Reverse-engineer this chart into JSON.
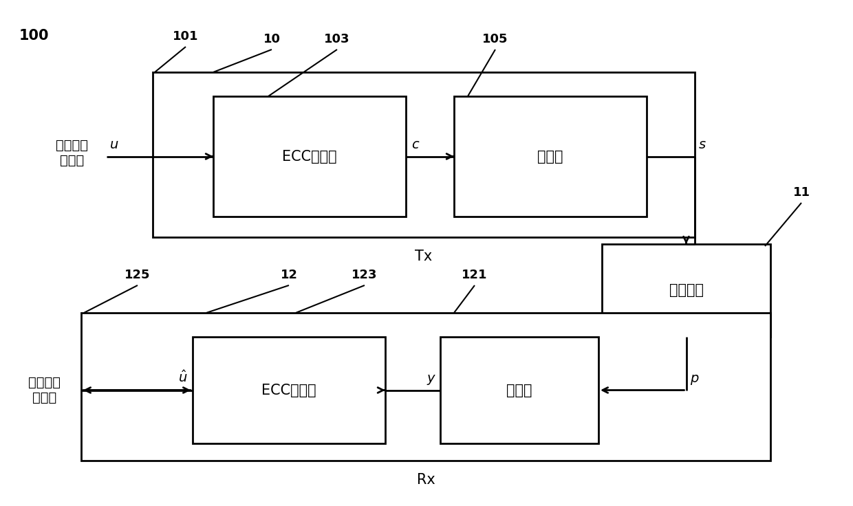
{
  "fig_width": 12.4,
  "fig_height": 7.36,
  "bg_color": "#ffffff",
  "label_100": "100",
  "label_10": "10",
  "label_101": "101",
  "label_103": "103",
  "label_105": "105",
  "label_11": "11",
  "label_12": "12",
  "label_121": "121",
  "label_123": "123",
  "label_125": "125",
  "tx_label": "Tx",
  "rx_label": "Rx",
  "ecc_encoder": "ECC编码器",
  "modulator": "调制器",
  "channel": "传输信道",
  "ecc_decoder": "ECC解码器",
  "demodulator": "解调器",
  "input_label": "数字输入\n数据块",
  "output_label": "数字输出\n数据块",
  "signal_u": "u",
  "signal_c": "c",
  "signal_s": "s",
  "signal_p": "p",
  "signal_y": "y",
  "signal_u_hat": "$\\hat{u}$"
}
